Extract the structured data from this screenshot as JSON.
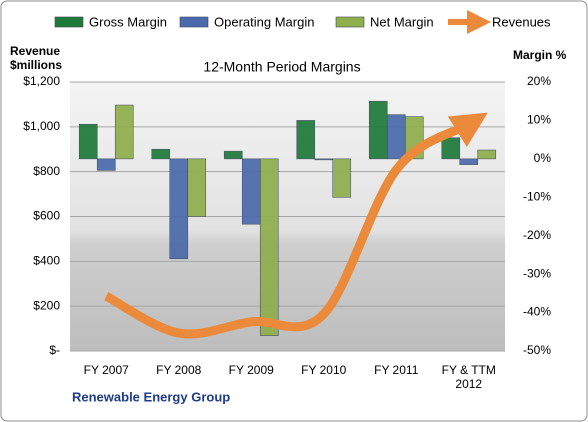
{
  "chart_data": {
    "type": "bar",
    "title": "12-Month Period Margins",
    "ylabel": "Revenue $millions",
    "y2label": "Margin %",
    "source": "Renewable Energy Group",
    "categories": [
      "FY 2007",
      "FY 2008",
      "FY 2009",
      "FY 2010",
      "FY 2011",
      "FY & TTM 2012"
    ],
    "series": [
      {
        "name": "Gross Margin",
        "color": "#1f7a3a",
        "axis": "y2",
        "values": [
          9,
          2.5,
          2,
          10,
          15,
          5.5
        ]
      },
      {
        "name": "Operating Margin",
        "color": "#4a6aab",
        "axis": "y2",
        "values": [
          -3,
          -26,
          -17,
          0,
          11.5,
          -1.5
        ]
      },
      {
        "name": "Net Margin",
        "color": "#8fae4c",
        "axis": "y2",
        "values": [
          14,
          -15,
          -46,
          -10,
          11,
          2.3
        ]
      },
      {
        "name": "Revenues",
        "color": "#ec8a3c",
        "type": "line",
        "values": [
          245,
          80,
          130,
          165,
          808,
          1010
        ]
      }
    ],
    "ylim": [
      0,
      1200
    ],
    "yticks": [
      {
        "value": 0,
        "label": "$-"
      },
      {
        "value": 200,
        "label": "$200"
      },
      {
        "value": 400,
        "label": "$400"
      },
      {
        "value": 600,
        "label": "$600"
      },
      {
        "value": 800,
        "label": "$800"
      },
      {
        "value": 1000,
        "label": "$1,000"
      },
      {
        "value": 1200,
        "label": "$1,200"
      }
    ],
    "y2lim": [
      -50,
      20
    ],
    "y2ticks": [
      {
        "value": -50,
        "label": "-50%"
      },
      {
        "value": -40,
        "label": "-40%"
      },
      {
        "value": -30,
        "label": "-30%"
      },
      {
        "value": -20,
        "label": "-20%"
      },
      {
        "value": -10,
        "label": "-10%"
      },
      {
        "value": 0,
        "label": "0%"
      },
      {
        "value": 10,
        "label": "10%"
      },
      {
        "value": 20,
        "label": "20%"
      }
    ],
    "grid": true
  }
}
